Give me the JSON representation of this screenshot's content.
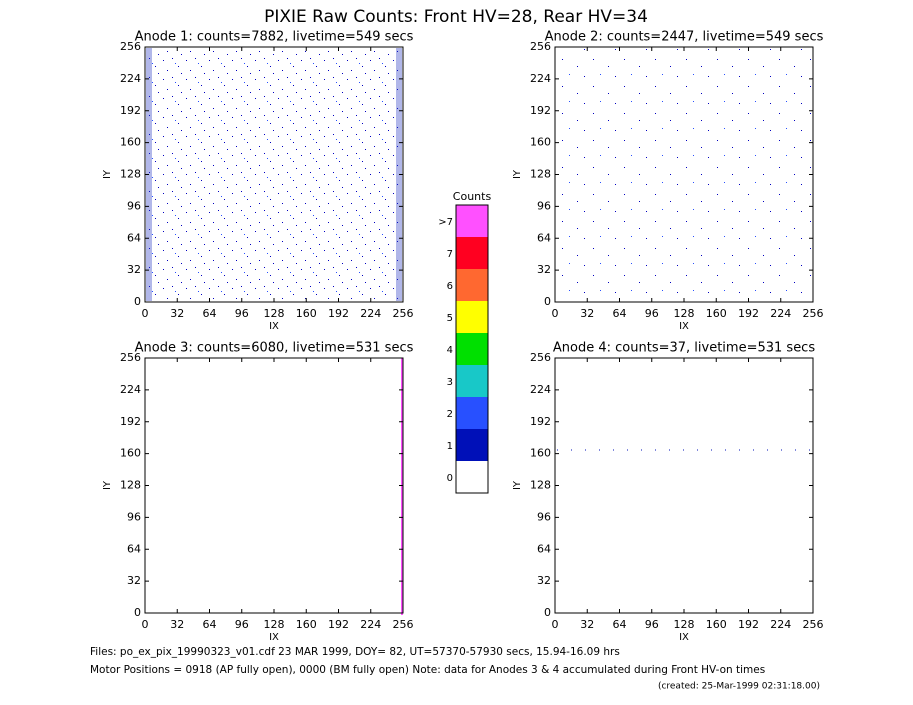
{
  "title": "PIXIE Raw Counts:  Front HV=28, Rear HV=34",
  "chart_data": [
    {
      "type": "scatter",
      "title": "Anode 1: counts=7882, livetime=549 secs",
      "xlabel": "IX",
      "ylabel": "IY",
      "xlim": [
        0,
        256
      ],
      "ylim": [
        0,
        256
      ],
      "xticks": [
        0,
        32,
        64,
        96,
        128,
        160,
        192,
        224,
        256
      ],
      "yticks": [
        0,
        32,
        64,
        96,
        128,
        160,
        192,
        224,
        256
      ]
    },
    {
      "type": "scatter",
      "title": "Anode 2: counts=2447, livetime=549 secs",
      "xlabel": "IX",
      "ylabel": "IY",
      "xlim": [
        0,
        256
      ],
      "ylim": [
        0,
        256
      ],
      "xticks": [
        0,
        32,
        64,
        96,
        128,
        160,
        192,
        224,
        256
      ],
      "yticks": [
        0,
        32,
        64,
        96,
        128,
        160,
        192,
        224,
        256
      ]
    },
    {
      "type": "scatter",
      "title": "Anode 3: counts=6080, livetime=531 secs",
      "xlabel": "IX",
      "ylabel": "IY",
      "xlim": [
        0,
        256
      ],
      "ylim": [
        0,
        256
      ],
      "xticks": [
        0,
        32,
        64,
        96,
        128,
        160,
        192,
        224,
        256
      ],
      "yticks": [
        0,
        32,
        64,
        96,
        128,
        160,
        192,
        224,
        256
      ]
    },
    {
      "type": "scatter",
      "title": "Anode 4: counts=37, livetime=531 secs",
      "xlabel": "IX",
      "ylabel": "IY",
      "xlim": [
        0,
        256
      ],
      "ylim": [
        0,
        256
      ],
      "xticks": [
        0,
        32,
        64,
        96,
        128,
        160,
        192,
        224,
        256
      ],
      "yticks": [
        0,
        32,
        64,
        96,
        128,
        160,
        192,
        224,
        256
      ]
    }
  ],
  "colorbar": {
    "label": "Counts",
    "levels": [
      "0",
      "1",
      "2",
      "3",
      "4",
      "5",
      "6",
      "7",
      ">7"
    ],
    "colors": [
      "#ffffff",
      "#0010b8",
      "#2850ff",
      "#18c8c8",
      "#00e000",
      "#ffff00",
      "#ff6830",
      "#ff0020",
      "#ff50ff"
    ]
  },
  "footer": [
    "Files: po_ex_pix_19990323_v01.cdf   23 MAR 1999, DOY= 82, UT=57370-57930 secs, 15.94-16.09 hrs",
    "Motor Positions = 0918 (AP fully open), 0000 (BM fully open)    Note: data for Anodes 3 & 4 accumulated during Front HV-on times",
    "(created: 25-Mar-1999 02:31:18.00)"
  ]
}
